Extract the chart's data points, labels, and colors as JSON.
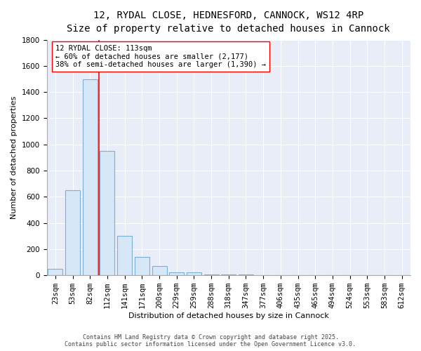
{
  "title": "12, RYDAL CLOSE, HEDNESFORD, CANNOCK, WS12 4RP",
  "subtitle": "Size of property relative to detached houses in Cannock",
  "xlabel": "Distribution of detached houses by size in Cannock",
  "ylabel": "Number of detached properties",
  "bar_labels": [
    "23sqm",
    "53sqm",
    "82sqm",
    "112sqm",
    "141sqm",
    "171sqm",
    "200sqm",
    "229sqm",
    "259sqm",
    "288sqm",
    "318sqm",
    "347sqm",
    "377sqm",
    "406sqm",
    "435sqm",
    "465sqm",
    "494sqm",
    "524sqm",
    "553sqm",
    "583sqm",
    "612sqm"
  ],
  "bar_values": [
    50,
    650,
    1500,
    950,
    300,
    140,
    70,
    25,
    20,
    5,
    5,
    5,
    0,
    0,
    0,
    0,
    0,
    0,
    0,
    0,
    0
  ],
  "bar_color": "#d6e8f7",
  "bar_edge_color": "#7ab0d4",
  "fig_background": "#ffffff",
  "ax_background": "#e8edf8",
  "grid_color": "#ffffff",
  "ylim": [
    0,
    1800
  ],
  "yticks": [
    0,
    200,
    400,
    600,
    800,
    1000,
    1200,
    1400,
    1600,
    1800
  ],
  "red_line_index": 2.5,
  "annotation_text": "12 RYDAL CLOSE: 113sqm\n← 60% of detached houses are smaller (2,177)\n38% of semi-detached houses are larger (1,390) →",
  "footer_line1": "Contains HM Land Registry data © Crown copyright and database right 2025.",
  "footer_line2": "Contains public sector information licensed under the Open Government Licence v3.0.",
  "title_fontsize": 10,
  "subtitle_fontsize": 9,
  "axis_label_fontsize": 8,
  "tick_fontsize": 7.5,
  "annotation_fontsize": 7.5,
  "footer_fontsize": 6
}
